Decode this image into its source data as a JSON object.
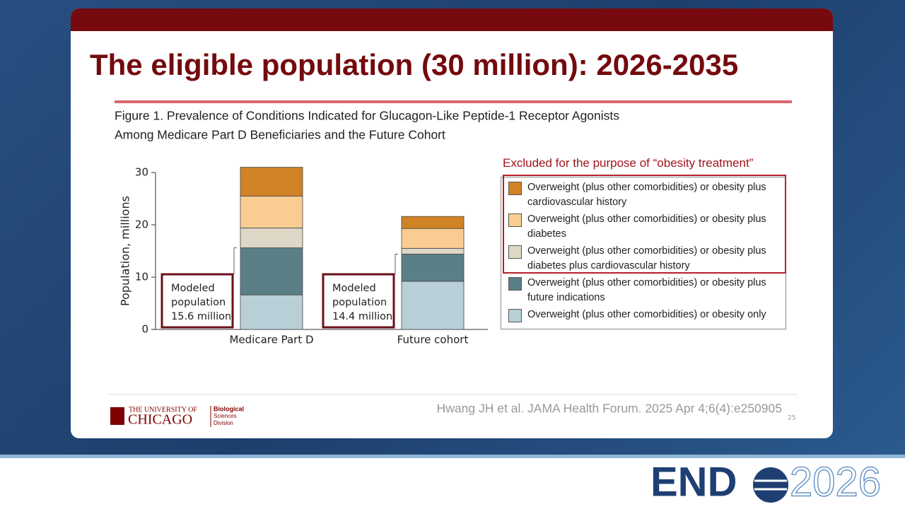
{
  "slide": {
    "title": "The eligible population (30 million): 2026-2035",
    "citation": "Hwang JH et al. JAMA Health Forum. 2025 Apr 4;6(4):e250905",
    "page_number": 25,
    "logo": {
      "line1": "THE UNIVERSITY OF",
      "line2": "CHICAGO",
      "division": [
        "Biological",
        "Sciences",
        "Division"
      ]
    },
    "brand": {
      "left": "END",
      "right": "2026"
    }
  },
  "chart_data": {
    "type": "bar",
    "stacked": true,
    "title": [
      "Figure 1. Prevalence of Conditions Indicated for Glucagon-Like Peptide-1 Receptor Agonists",
      "Among Medicare Part D Beneficiaries and the Future Cohort"
    ],
    "y_label": "Population, millions",
    "categories": [
      "Medicare Part D",
      "Future cohort"
    ],
    "ylim": [
      0,
      30
    ],
    "yticks": [
      0,
      10,
      20,
      30
    ],
    "series": [
      {
        "name": "Overweight (plus other comorbidities) or obesity only",
        "color": "#b9cfd8",
        "values": [
          6.6,
          9.2
        ]
      },
      {
        "name": "Overweight (plus other comorbidities) or obesity plus future indications",
        "color": "#5b7f86",
        "values": [
          9.0,
          5.2
        ]
      },
      {
        "name": "Overweight (plus other comorbidities) or obesity plus diabetes plus cardiovascular history",
        "color": "#ddd7c5",
        "values": [
          3.8,
          1.1
        ]
      },
      {
        "name": "Overweight (plus other comorbidities) or obesity plus diabetes",
        "color": "#f9cd92",
        "values": [
          6.1,
          3.8
        ]
      },
      {
        "name": "Overweight (plus other comorbidities) or obesity plus cardiovascular history",
        "color": "#d08324",
        "values": [
          5.5,
          2.3
        ]
      }
    ],
    "annotations": [
      {
        "lines": [
          "Modeled",
          "population",
          "15.6 million"
        ]
      },
      {
        "lines": [
          "Modeled",
          "population",
          "14.4 million"
        ]
      }
    ],
    "legend_note": "Excluded for the purpose of “obesity treatment”"
  }
}
